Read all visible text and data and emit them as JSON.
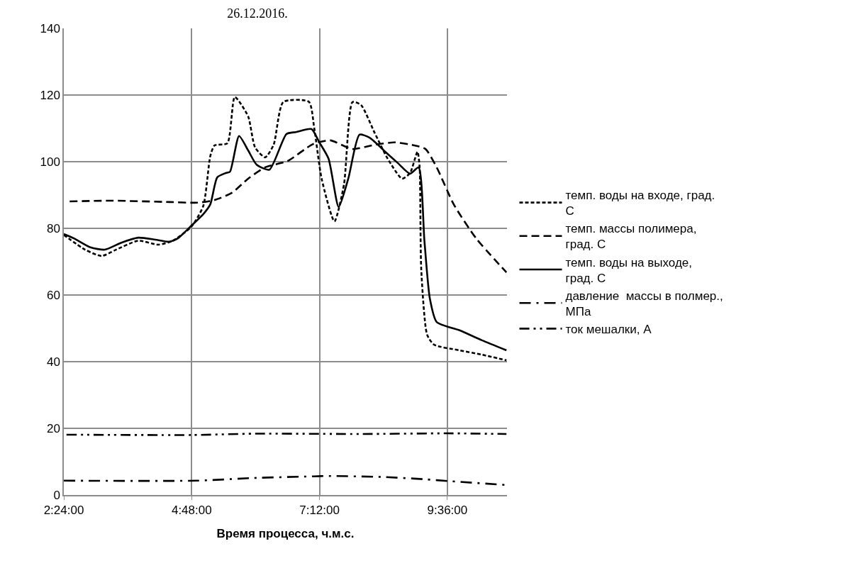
{
  "chart_data": {
    "type": "line",
    "title": "26.12.2016.",
    "xlabel": "Время процесса, ч.м.с.",
    "xlim": [
      2.4,
      10.72
    ],
    "xticks": [
      {
        "value": 2.4,
        "label": "2:24:00"
      },
      {
        "value": 4.8,
        "label": "4:48:00"
      },
      {
        "value": 7.2,
        "label": "7:12:00"
      },
      {
        "value": 9.6,
        "label": "9:36:00"
      }
    ],
    "ylim": [
      0,
      140
    ],
    "yticks": [
      0,
      20,
      40,
      60,
      80,
      100,
      120,
      140
    ],
    "grid": true,
    "legend": "right",
    "marker": "none",
    "series": [
      {
        "name": "темп. воды на входе, град. С",
        "color": "#000000",
        "line_style": "dashed",
        "x": [
          2.4,
          2.8,
          3.11,
          3.38,
          3.8,
          4.17,
          4.44,
          4.8,
          5.02,
          5.15,
          5.23,
          5.47,
          5.61,
          5.86,
          5.99,
          6.18,
          6.34,
          6.52,
          7.0,
          7.1,
          7.24,
          7.48,
          7.66,
          7.82,
          7.98,
          8.24,
          8.48,
          8.75,
          8.9,
          9.04,
          9.08,
          9.11,
          9.22,
          9.35,
          9.83,
          10.25,
          10.71
        ],
        "values": [
          78.0,
          73.6,
          71.7,
          73.6,
          76.3,
          75.1,
          76.2,
          80.6,
          86.8,
          101.7,
          104.9,
          105.5,
          119.4,
          113.6,
          104.3,
          101.3,
          105.1,
          117.9,
          118.0,
          110.2,
          94.9,
          82.1,
          93.2,
          117.9,
          117.0,
          108.5,
          100.9,
          94.9,
          96.6,
          103.0,
          98.3,
          67.7,
          48.1,
          45.1,
          43.4,
          42.1,
          40.4
        ]
      },
      {
        "name": "темп. массы полимера, град. С",
        "color": "#000000",
        "line_style": "longdash",
        "x": [
          2.51,
          3.32,
          4.38,
          4.91,
          5.23,
          5.55,
          5.86,
          6.18,
          6.6,
          7.08,
          7.4,
          7.82,
          8.24,
          8.61,
          8.98,
          9.19,
          9.4,
          9.72,
          10.14,
          10.71
        ],
        "values": [
          88.1,
          88.3,
          87.9,
          87.7,
          88.5,
          90.6,
          94.9,
          98.3,
          100.2,
          105.3,
          106.4,
          103.8,
          105.1,
          105.8,
          104.9,
          103.8,
          98.3,
          87.2,
          77.0,
          66.8
        ]
      },
      {
        "name": "темп. воды на выходе, град. С",
        "color": "#000000",
        "line_style": "solid",
        "x": [
          2.4,
          2.59,
          2.9,
          3.17,
          3.48,
          3.8,
          4.12,
          4.38,
          4.54,
          4.8,
          5.02,
          5.15,
          5.28,
          5.44,
          5.52,
          5.69,
          5.86,
          6.02,
          6.26,
          6.58,
          6.76,
          7.05,
          7.19,
          7.37,
          7.56,
          7.74,
          7.95,
          8.14,
          8.46,
          8.67,
          8.9,
          9.06,
          9.17,
          9.27,
          9.4,
          9.83,
          10.25,
          10.71
        ],
        "values": [
          78.3,
          77.0,
          74.3,
          73.6,
          75.7,
          77.2,
          76.6,
          76.0,
          77.0,
          80.9,
          84.3,
          87.2,
          95.3,
          96.6,
          97.0,
          107.7,
          103.4,
          99.1,
          97.6,
          108.3,
          108.9,
          109.8,
          106.0,
          100.9,
          86.4,
          94.9,
          108.1,
          107.2,
          102.6,
          99.6,
          96.4,
          98.3,
          76.2,
          59.1,
          51.9,
          49.4,
          46.4,
          43.4
        ]
      },
      {
        "name": "давление  массы в полмер., МПа",
        "color": "#000000",
        "line_style": "dashdot",
        "x": [
          2.4,
          4.9,
          5.95,
          7.1,
          7.35,
          8.4,
          9.2,
          9.6,
          10.71
        ],
        "values": [
          4.3,
          4.3,
          5.1,
          5.6,
          5.7,
          5.4,
          4.7,
          4.2,
          3.0
        ]
      },
      {
        "name": "ток мешалки, А",
        "color": "#000000",
        "line_style": "dashdotdot",
        "x": [
          2.45,
          4.8,
          6.0,
          8.0,
          9.6,
          10.71
        ],
        "values": [
          18.1,
          18.0,
          18.4,
          18.3,
          18.5,
          18.3
        ]
      }
    ]
  }
}
